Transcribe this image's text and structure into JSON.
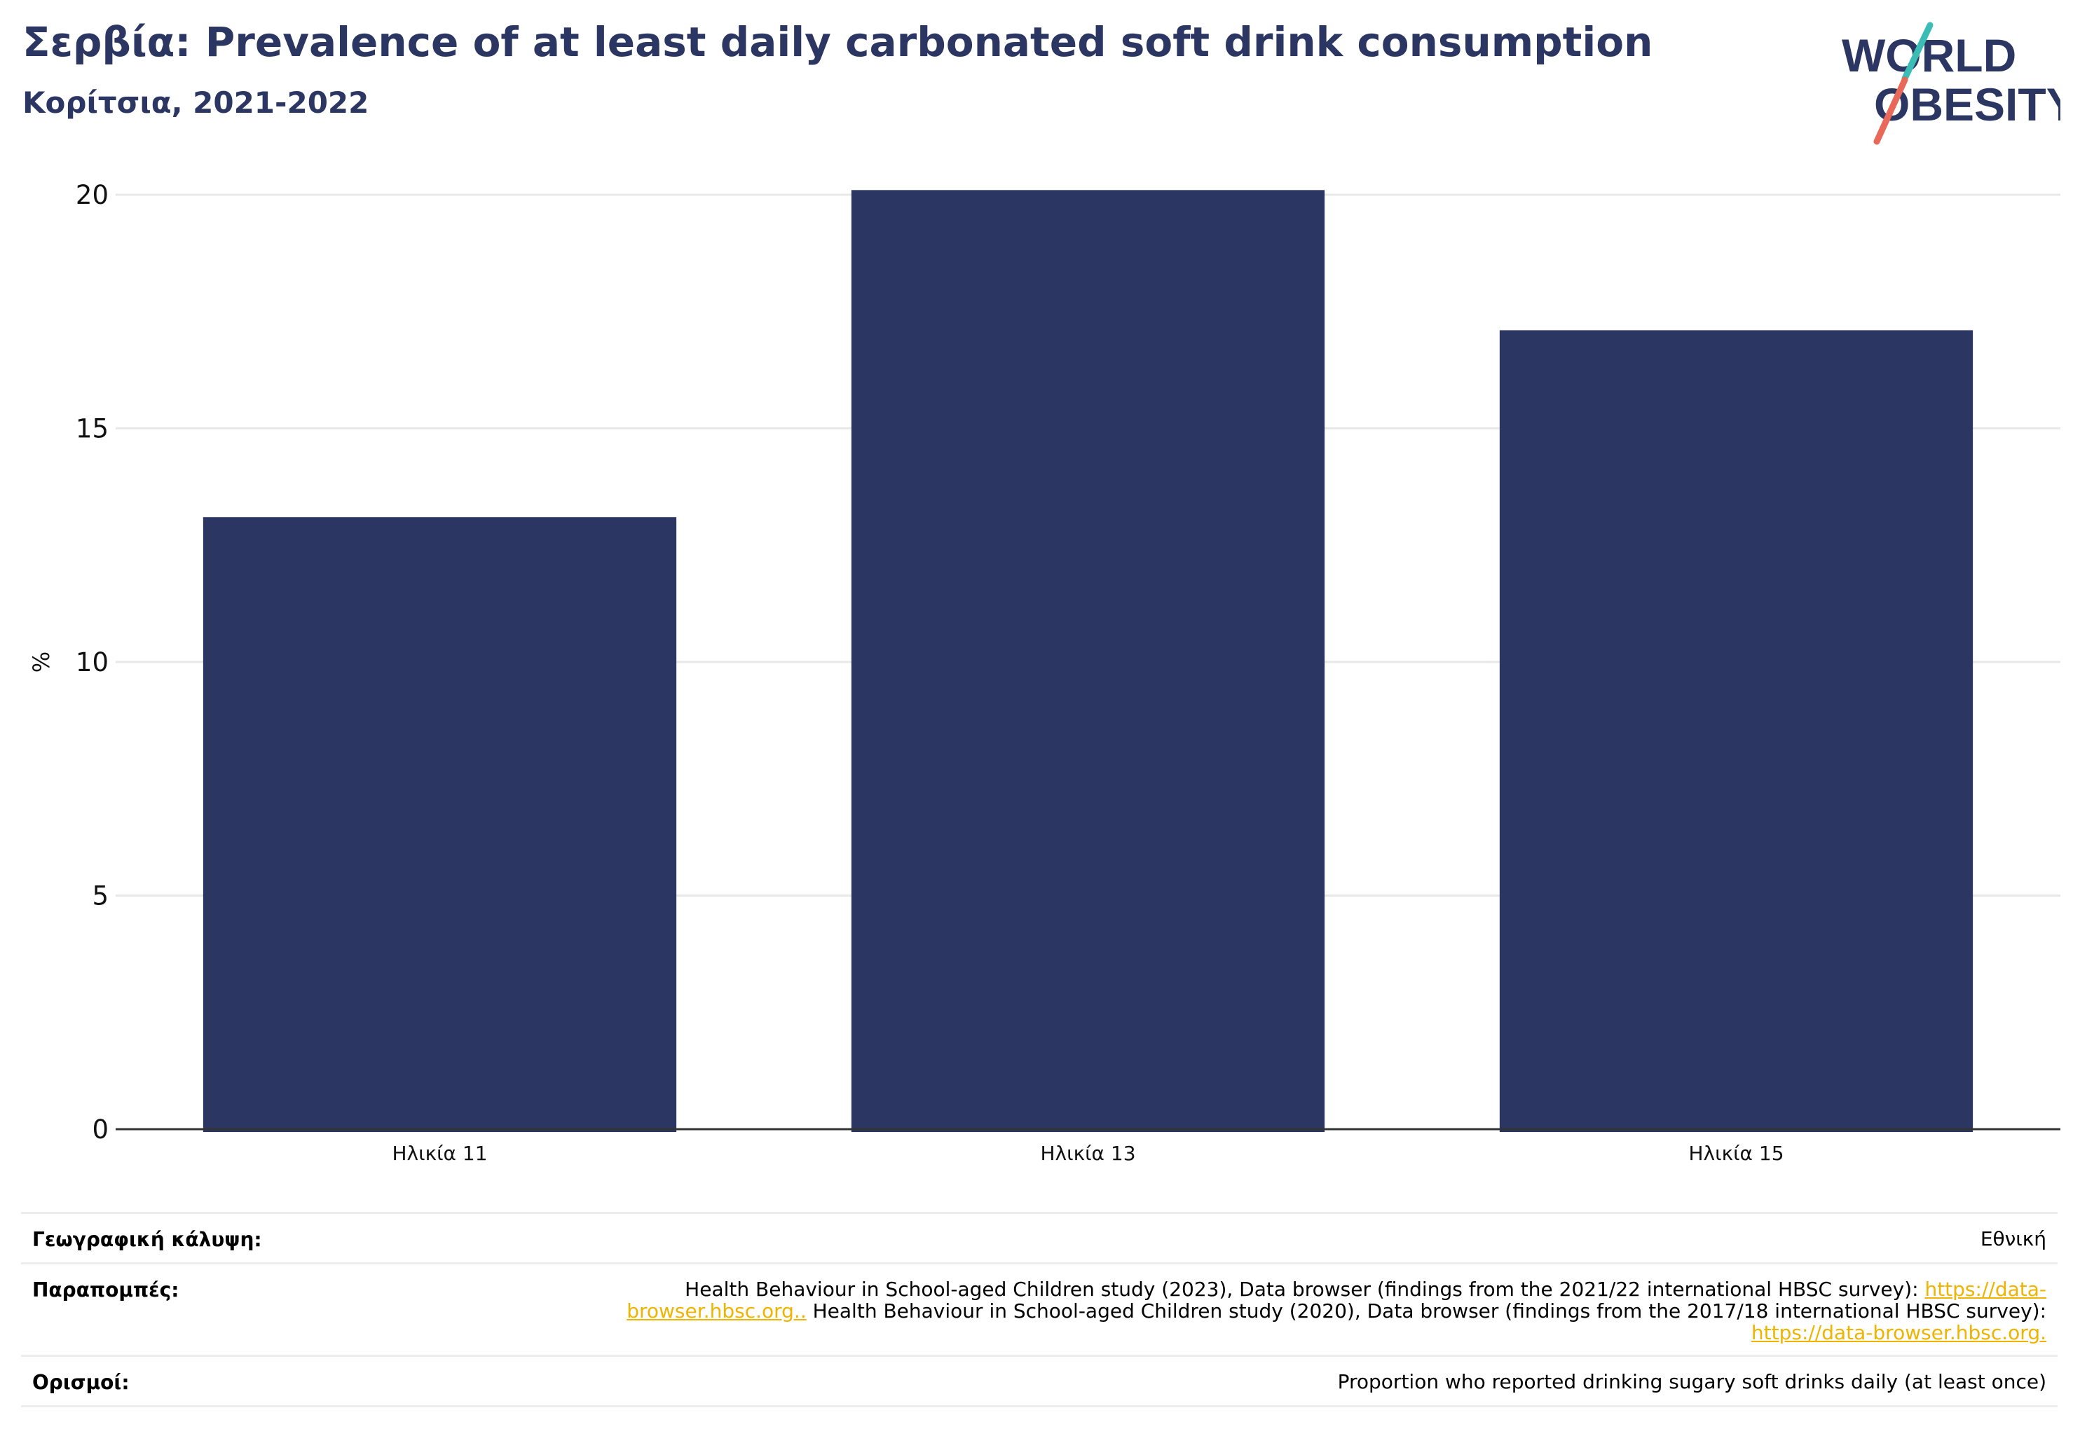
{
  "header": {
    "title": "Σερβία: Prevalence of at least daily carbonated soft drink consumption",
    "subtitle": "Κορίτσια, 2021-2022"
  },
  "logo": {
    "line1": "WORLD",
    "line2": "OBESITY",
    "colors": {
      "text": "#2b3762",
      "teal": "#3bbcb5",
      "coral": "#e8685a"
    }
  },
  "chart_data": {
    "type": "bar",
    "categories": [
      "Ηλικία 11",
      "Ηλικία 13",
      "Ηλικία 15"
    ],
    "values": [
      13.1,
      20.1,
      17.1
    ],
    "ylabel": "%",
    "ylim": [
      0,
      20
    ],
    "yticks": [
      0,
      5,
      10,
      15,
      20
    ],
    "grid": true,
    "bar_color": "#2b3762"
  },
  "footer": {
    "coverage_label": "Γεωγραφική κάλυψη:",
    "coverage_value": "Εθνική",
    "references_label": "Παραπομπές:",
    "ref1_text": "Health Behaviour in School-aged Children study (2023), Data browser (findings from the 2021/22 international HBSC survey): ",
    "ref1_link": "https://data-browser.hbsc.org..",
    "ref2_text": " Health Behaviour in School-aged Children study (2020), Data browser (findings from the 2017/18 international HBSC survey): ",
    "ref2_link": "https://data-browser.hbsc.org.",
    "definitions_label": "Ορισμοί:",
    "definitions_value": "Proportion who reported drinking sugary soft drinks daily (at least once)"
  }
}
